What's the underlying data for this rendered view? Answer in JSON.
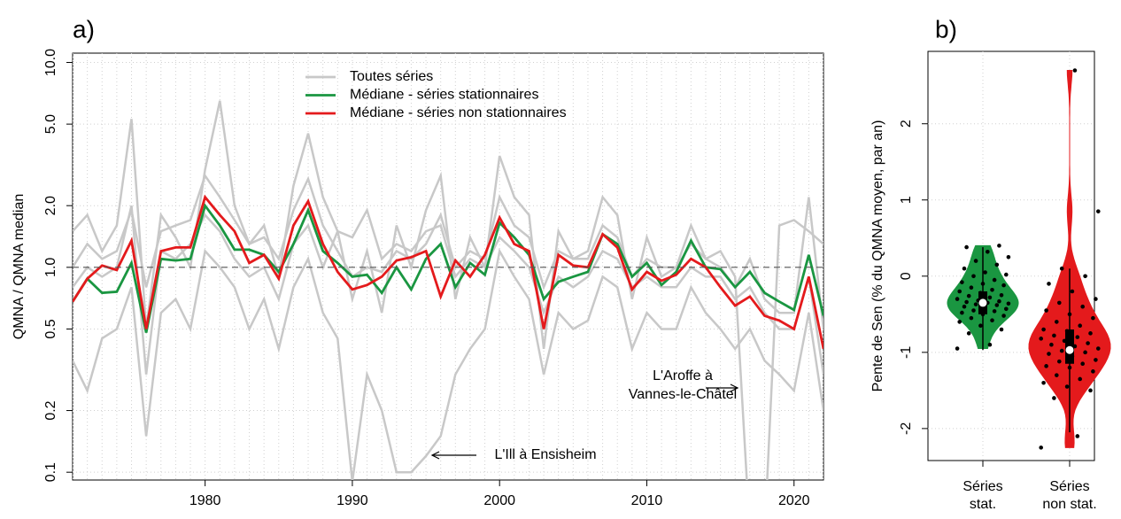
{
  "chart_data": [
    {
      "type": "line",
      "title": "a)",
      "y_label": "QMNA / QMNA median",
      "log_y": true,
      "grid": true,
      "legend": "top",
      "hline": 1,
      "x": [
        1971,
        1972,
        1973,
        1974,
        1975,
        1976,
        1977,
        1978,
        1979,
        1980,
        1981,
        1982,
        1983,
        1984,
        1985,
        1986,
        1987,
        1988,
        1989,
        1990,
        1991,
        1992,
        1993,
        1994,
        1995,
        1996,
        1997,
        1998,
        1999,
        2000,
        2001,
        2002,
        2003,
        2004,
        2005,
        2006,
        2007,
        2008,
        2009,
        2010,
        2011,
        2012,
        2013,
        2014,
        2015,
        2016,
        2017,
        2018,
        2019,
        2020,
        2021,
        2022
      ],
      "xlim": [
        1971,
        2022
      ],
      "xticks": [
        1980,
        1990,
        2000,
        2010,
        2020
      ],
      "ylim": [
        0.0916,
        11.1
      ],
      "yticks": [
        0.1,
        0.2,
        0.5,
        {
          "value": 1,
          "label": "1.0"
        },
        {
          "value": 2,
          "label": "2.0"
        },
        {
          "value": 5,
          "label": "5.0"
        },
        {
          "value": 10,
          "label": "10.0"
        }
      ],
      "series": [
        {
          "name": "Toutes séries",
          "color": "#c8c8c8",
          "lines": [
            [
              1.5,
              1.8,
              1.2,
              1.6,
              5.3,
              0.5,
              1.8,
              1.4,
              1.0,
              3.0,
              6.5,
              2.0,
              1.3,
              1.6,
              0.9,
              2.5,
              4.5,
              2.2,
              1.5,
              0.7,
              1.2,
              0.6,
              1.6,
              1.0,
              1.9,
              2.8,
              0.7,
              1.4,
              1.0,
              3.5,
              2.2,
              1.8,
              0.4,
              1.5,
              1.1,
              1.2,
              2.2,
              1.8,
              0.7,
              1.4,
              0.9,
              1.0,
              1.6,
              1.1,
              1.0,
              0.8,
              1.1,
              0.7,
              0.6,
              0.6,
              2.2,
              0.5
            ],
            [
              0.35,
              0.25,
              0.45,
              0.5,
              0.8,
              0.15,
              0.6,
              0.7,
              0.5,
              1.2,
              1.0,
              0.8,
              0.5,
              0.7,
              0.4,
              0.8,
              1.1,
              0.6,
              0.45,
              0.09,
              0.3,
              0.2,
              0.1,
              0.1,
              0.12,
              0.15,
              0.3,
              0.4,
              0.5,
              1.2,
              0.9,
              0.7,
              0.3,
              0.6,
              0.5,
              0.55,
              0.9,
              0.8,
              0.4,
              0.6,
              0.5,
              0.5,
              0.8,
              0.6,
              0.5,
              0.4,
              0.5,
              0.35,
              0.3,
              0.25,
              0.6,
              0.2
            ],
            [
              1.0,
              1.3,
              1.1,
              1.2,
              1.9,
              0.8,
              1.5,
              1.6,
              1.7,
              2.8,
              2.2,
              1.7,
              1.3,
              1.4,
              1.1,
              1.9,
              2.7,
              1.6,
              1.2,
              0.9,
              1.0,
              0.95,
              1.2,
              1.1,
              1.3,
              1.8,
              1.0,
              1.2,
              1.1,
              2.2,
              1.6,
              1.4,
              0.8,
              1.2,
              1.1,
              1.1,
              1.6,
              1.4,
              0.9,
              1.1,
              1.0,
              1.0,
              1.3,
              1.1,
              1.2,
              0.9,
              0.05,
              0.05,
              1.6,
              1.7,
              1.5,
              1.3
            ],
            [
              0.8,
              1.0,
              0.9,
              1.0,
              2.0,
              0.3,
              1.2,
              1.1,
              1.3,
              1.8,
              1.5,
              1.1,
              0.9,
              1.0,
              0.7,
              1.3,
              1.6,
              1.0,
              1.5,
              1.4,
              1.9,
              1.1,
              1.3,
              1.2,
              1.5,
              1.6,
              0.9,
              1.1,
              1.0,
              1.4,
              1.2,
              1.0,
              0.6,
              0.9,
              0.8,
              0.9,
              1.2,
              1.1,
              0.8,
              0.9,
              0.8,
              0.8,
              1.0,
              0.9,
              0.9,
              0.7,
              0.8,
              0.6,
              0.5,
              0.5,
              0.9,
              0.3
            ]
          ]
        },
        {
          "name": "Médiane - séries stationnaires",
          "color": "#1a9641",
          "values": [
            0.68,
            0.88,
            0.75,
            0.76,
            1.05,
            0.48,
            1.1,
            1.08,
            1.1,
            2.0,
            1.6,
            1.22,
            1.22,
            1.15,
            0.95,
            1.3,
            1.9,
            1.2,
            1.05,
            0.9,
            0.92,
            0.75,
            1.0,
            0.78,
            1.1,
            1.3,
            0.8,
            1.05,
            0.92,
            1.65,
            1.4,
            1.15,
            0.7,
            0.85,
            0.9,
            0.95,
            1.45,
            1.3,
            0.9,
            1.05,
            0.82,
            0.95,
            1.35,
            1.0,
            0.98,
            0.8,
            0.95,
            0.75,
            0.68,
            0.62,
            1.15,
            0.58
          ]
        },
        {
          "name": "Médiane - séries non stationnaires",
          "color": "#e41a1c",
          "values": [
            0.68,
            0.88,
            1.02,
            0.97,
            1.35,
            0.5,
            1.2,
            1.25,
            1.25,
            2.2,
            1.8,
            1.5,
            1.05,
            1.15,
            0.88,
            1.6,
            2.1,
            1.3,
            0.95,
            0.78,
            0.82,
            0.9,
            1.08,
            1.12,
            1.2,
            0.72,
            1.08,
            0.9,
            1.15,
            1.75,
            1.3,
            1.2,
            0.5,
            1.15,
            1.02,
            1.0,
            1.45,
            1.25,
            0.78,
            0.95,
            0.86,
            0.92,
            1.1,
            1.0,
            0.8,
            0.65,
            0.72,
            0.58,
            0.55,
            0.5,
            0.9,
            0.4
          ]
        }
      ],
      "annotations": [
        {
          "lines": [
            "L'Aroffe à",
            "Vannes-le-Châtel"
          ]
        },
        {
          "lines": [
            "L'Ill à Ensisheim"
          ]
        }
      ]
    },
    {
      "type": "violin",
      "title": "b)",
      "y_label": "Pente de Sen (% du QMNA moyen, par an)",
      "grid": true,
      "ylim": [
        -2.42,
        2.95
      ],
      "yticks": [
        -2,
        -1,
        0,
        1,
        2
      ],
      "categories": [
        "Séries\nstat.",
        "Séries\nnon stat."
      ],
      "groups": [
        {
          "color": "#1a9641",
          "values": [
            -0.95,
            -0.9,
            -0.75,
            -0.7,
            -0.65,
            -0.6,
            -0.58,
            -0.55,
            -0.52,
            -0.5,
            -0.48,
            -0.46,
            -0.45,
            -0.43,
            -0.42,
            -0.4,
            -0.38,
            -0.37,
            -0.36,
            -0.35,
            -0.34,
            -0.33,
            -0.32,
            -0.3,
            -0.28,
            -0.26,
            -0.25,
            -0.22,
            -0.2,
            -0.18,
            -0.15,
            -0.12,
            -0.1,
            -0.08,
            -0.05,
            0,
            0.02,
            0.05,
            0.1,
            0.15,
            0.2,
            0.25,
            0.32,
            0.38,
            0.4
          ],
          "box": {
            "whisker_low": -0.97,
            "q1": -0.5,
            "median": -0.35,
            "q3": -0.2,
            "whisker_high": 0.38
          }
        },
        {
          "color": "#e41a1c",
          "values": [
            -2.25,
            -2.1,
            -1.6,
            -1.5,
            -1.45,
            -1.4,
            -1.35,
            -1.3,
            -1.25,
            -1.2,
            -1.18,
            -1.15,
            -1.12,
            -1.1,
            -1.05,
            -1.02,
            -1,
            -0.98,
            -0.95,
            -0.92,
            -0.9,
            -0.88,
            -0.85,
            -0.82,
            -0.8,
            -0.78,
            -0.75,
            -0.72,
            -0.7,
            -0.65,
            -0.6,
            -0.55,
            -0.5,
            -0.45,
            -0.4,
            -0.35,
            -0.3,
            -0.2,
            -0.1,
            0,
            0.1,
            0.85,
            2.7
          ],
          "box": {
            "whisker_low": -2.05,
            "q1": -1.15,
            "median": -0.97,
            "q3": -0.7,
            "whisker_high": 0.1
          }
        }
      ]
    }
  ]
}
